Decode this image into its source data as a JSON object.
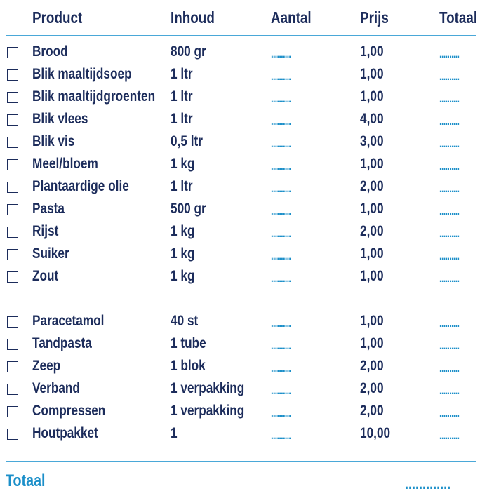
{
  "table": {
    "columns": [
      "Product",
      "Inhoud",
      "Aantal",
      "Prijs",
      "Totaal"
    ],
    "groups": [
      {
        "rows": [
          [
            "Brood",
            "800 gr",
            "..........",
            "1,00",
            ".........."
          ],
          [
            "Blik maaltijdsoep",
            "1 ltr",
            "..........",
            "1,00",
            ".........."
          ],
          [
            "Blik maaltijdgroenten",
            "1 ltr",
            "..........",
            "1,00",
            ".........."
          ],
          [
            "Blik vlees",
            "1 ltr",
            "..........",
            "4,00",
            ".........."
          ],
          [
            "Blik vis",
            "0,5 ltr",
            "..........",
            "3,00",
            ".........."
          ],
          [
            "Meel/bloem",
            "1 kg",
            "..........",
            "1,00",
            ".........."
          ],
          [
            "Plantaardige olie",
            "1 ltr",
            "..........",
            "2,00",
            ".........."
          ],
          [
            "Pasta",
            "500 gr",
            "..........",
            "1,00",
            ".........."
          ],
          [
            "Rijst",
            "1 kg",
            "..........",
            "2,00",
            ".........."
          ],
          [
            "Suiker",
            "1 kg",
            "..........",
            "1,00",
            ".........."
          ],
          [
            "Zout",
            "1 kg",
            "..........",
            "1,00",
            ".........."
          ]
        ]
      },
      {
        "rows": [
          [
            "Paracetamol",
            "40 st",
            "..........",
            "1,00",
            ".........."
          ],
          [
            "Tandpasta",
            "1 tube",
            "..........",
            "1,00",
            ".........."
          ],
          [
            "Zeep",
            "1 blok",
            "..........",
            "2,00",
            ".........."
          ],
          [
            "Verband",
            "1 verpakking",
            "..........",
            "2,00",
            ".........."
          ],
          [
            "Compressen",
            "1 verpakking",
            "..........",
            "2,00",
            ".........."
          ],
          [
            "Houtpakket",
            "1",
            "..........",
            "10,00",
            ".........."
          ]
        ]
      }
    ]
  },
  "footer": {
    "label": "Totaal",
    "value": "............."
  }
}
